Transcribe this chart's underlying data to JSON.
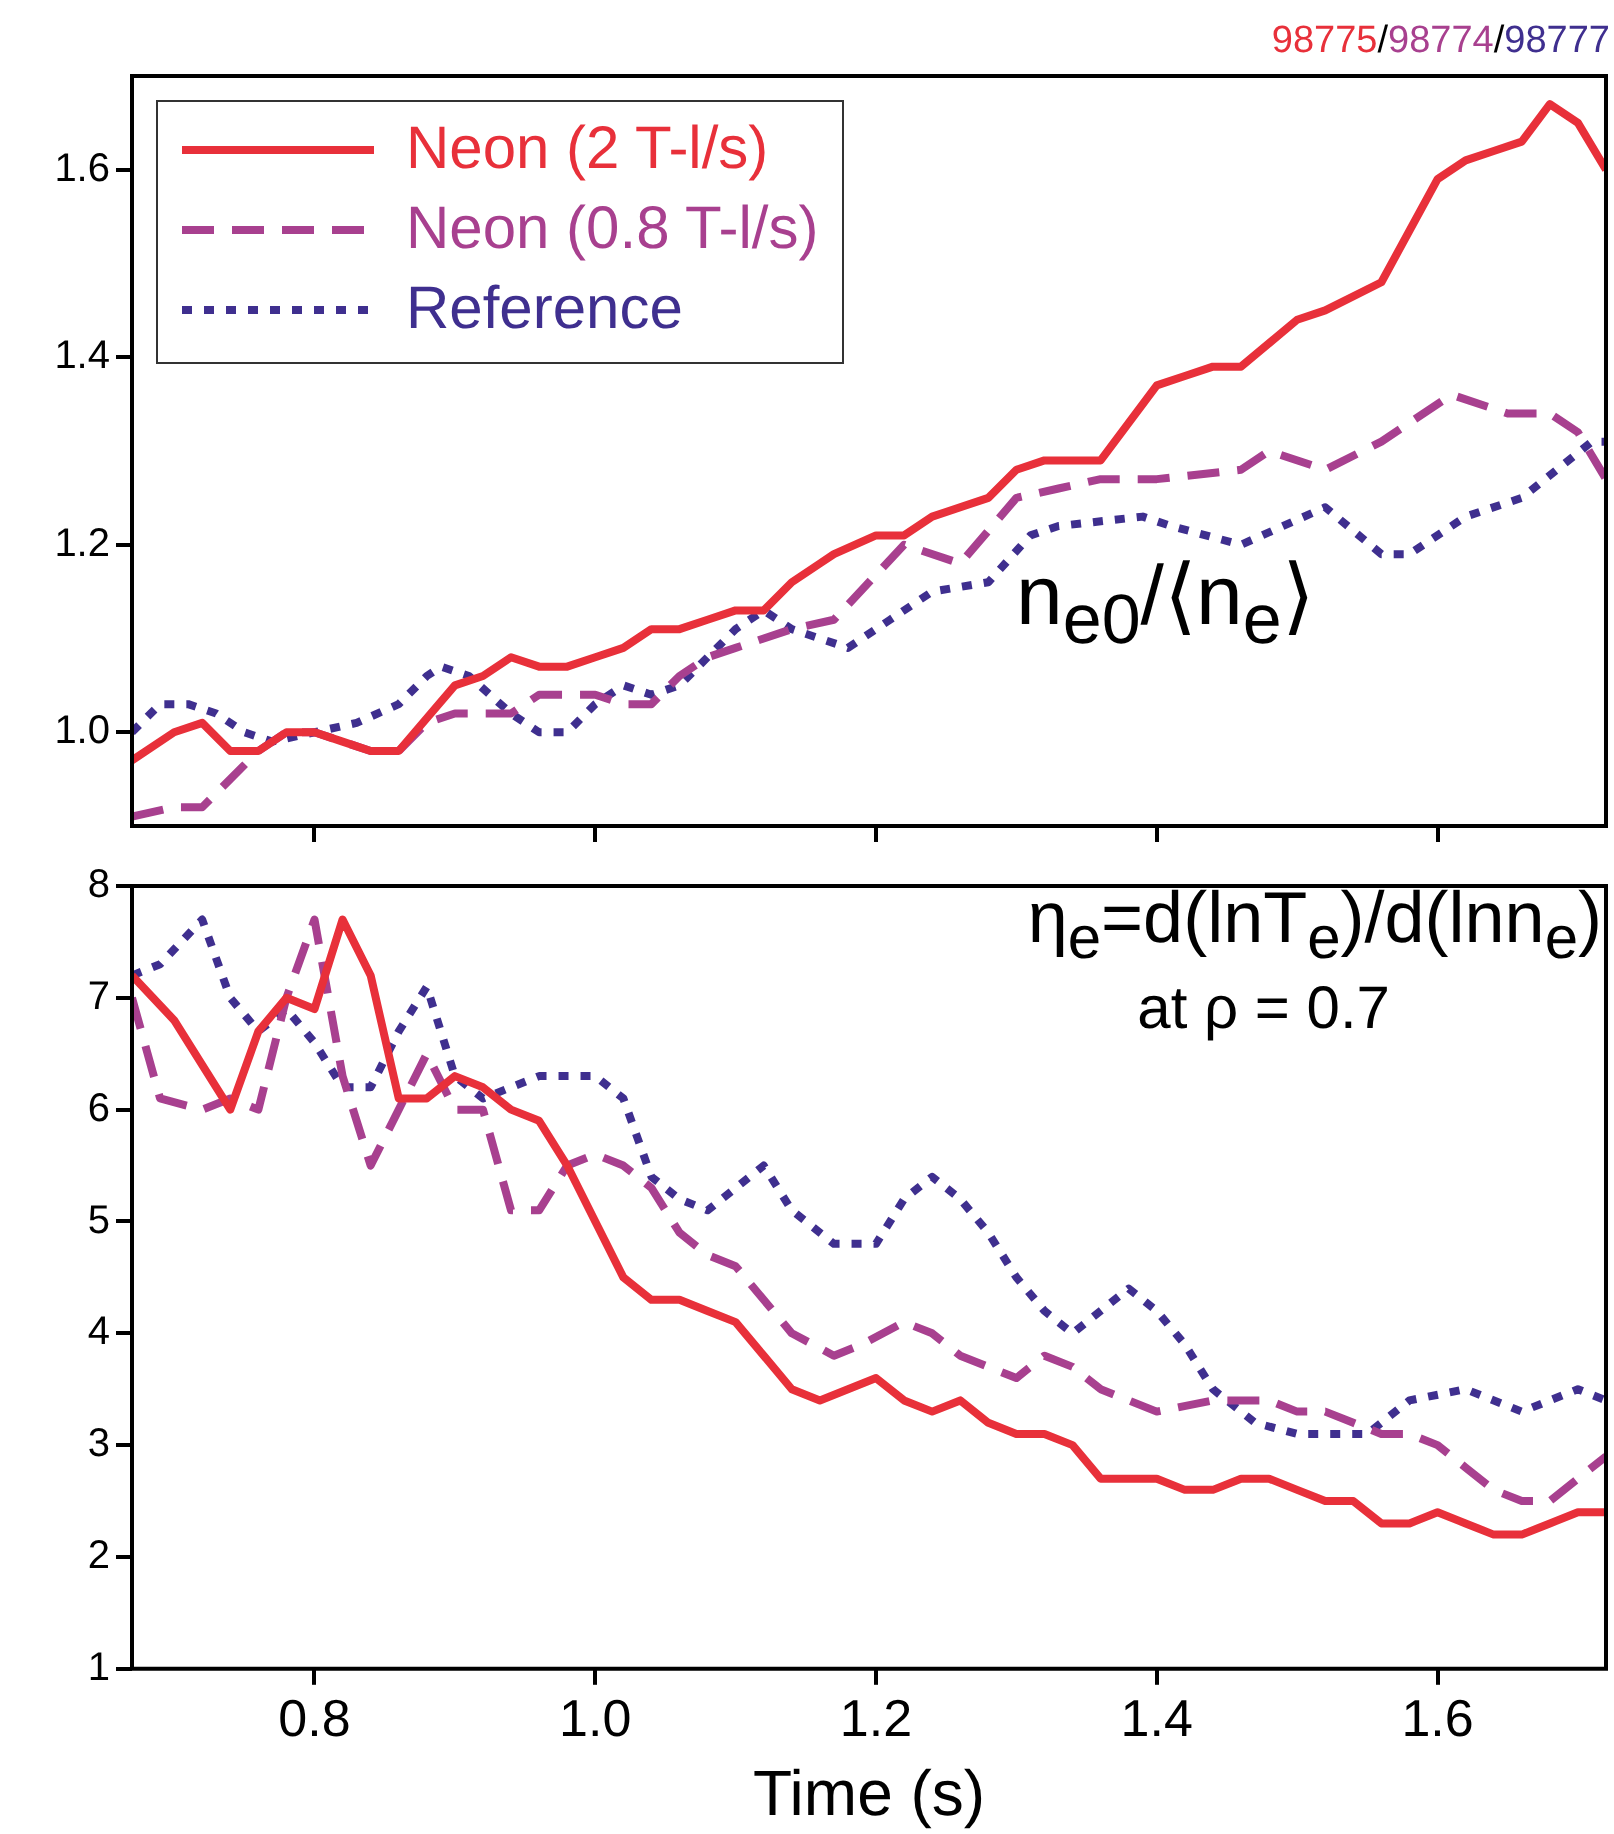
{
  "chart_data": [
    {
      "type": "line",
      "xlim": [
        0.67,
        1.72
      ],
      "xticks": [
        0.8,
        1,
        1.2,
        1.4,
        1.6
      ],
      "ylim": [
        0.9,
        1.7
      ],
      "yticks": [
        {
          "value": 1,
          "label": "1.0"
        },
        1.2,
        1.4,
        1.6
      ],
      "tick_labels": "y",
      "grid": false,
      "legend": "top left",
      "marker": "none",
      "annotations": [
        "98775/98774/98777",
        "n$_{e0}$/⟨n$_{e}$⟩"
      ],
      "series": [
        {
          "name": "Neon (2 T-l/s)",
          "color": "#e8303a",
          "line_style": "solid",
          "x": [
            0.67,
            0.7,
            0.72,
            0.74,
            0.76,
            0.78,
            0.8,
            0.82,
            0.84,
            0.86,
            0.9,
            0.92,
            0.94,
            0.96,
            0.98,
            1.0,
            1.02,
            1.04,
            1.06,
            1.08,
            1.1,
            1.12,
            1.14,
            1.16,
            1.17,
            1.2,
            1.22,
            1.24,
            1.28,
            1.3,
            1.32,
            1.34,
            1.36,
            1.4,
            1.42,
            1.44,
            1.46,
            1.5,
            1.52,
            1.56,
            1.6,
            1.62,
            1.64,
            1.66,
            1.68,
            1.7,
            1.72
          ],
          "values": [
            0.97,
            1.0,
            1.01,
            0.98,
            0.98,
            1.0,
            1.0,
            0.99,
            0.98,
            0.98,
            1.05,
            1.06,
            1.08,
            1.07,
            1.07,
            1.08,
            1.09,
            1.11,
            1.11,
            1.12,
            1.13,
            1.13,
            1.16,
            1.18,
            1.19,
            1.21,
            1.21,
            1.23,
            1.25,
            1.28,
            1.29,
            1.29,
            1.29,
            1.37,
            1.38,
            1.39,
            1.39,
            1.44,
            1.45,
            1.48,
            1.59,
            1.61,
            1.62,
            1.63,
            1.67,
            1.65,
            1.6
          ]
        },
        {
          "name": "Neon (0.8 T-l/s)",
          "color": "#a8408f",
          "line_style": "dashed",
          "x": [
            0.67,
            0.7,
            0.72,
            0.74,
            0.76,
            0.78,
            0.8,
            0.82,
            0.84,
            0.86,
            0.88,
            0.9,
            0.94,
            0.96,
            0.98,
            1.0,
            1.02,
            1.04,
            1.06,
            1.08,
            1.1,
            1.12,
            1.14,
            1.17,
            1.22,
            1.26,
            1.3,
            1.33,
            1.36,
            1.4,
            1.46,
            1.48,
            1.52,
            1.56,
            1.61,
            1.65,
            1.68,
            1.7,
            1.72
          ],
          "values": [
            0.91,
            0.92,
            0.92,
            0.95,
            0.98,
            1.0,
            1.0,
            0.99,
            0.98,
            0.98,
            1.01,
            1.02,
            1.02,
            1.04,
            1.04,
            1.04,
            1.03,
            1.03,
            1.06,
            1.08,
            1.09,
            1.1,
            1.11,
            1.12,
            1.2,
            1.18,
            1.25,
            1.26,
            1.27,
            1.27,
            1.28,
            1.3,
            1.28,
            1.31,
            1.36,
            1.34,
            1.34,
            1.32,
            1.27
          ]
        },
        {
          "name": "Reference",
          "color": "#3f2f8f",
          "line_style": "dotted",
          "x": [
            0.67,
            0.69,
            0.71,
            0.73,
            0.75,
            0.77,
            0.8,
            0.83,
            0.86,
            0.88,
            0.89,
            0.91,
            0.94,
            0.96,
            0.98,
            1.0,
            1.02,
            1.04,
            1.06,
            1.08,
            1.1,
            1.12,
            1.14,
            1.18,
            1.21,
            1.24,
            1.28,
            1.31,
            1.33,
            1.39,
            1.41,
            1.46,
            1.52,
            1.56,
            1.58,
            1.62,
            1.66,
            1.71,
            1.72
          ],
          "values": [
            1.0,
            1.03,
            1.03,
            1.02,
            1.0,
            0.99,
            1.0,
            1.01,
            1.03,
            1.06,
            1.07,
            1.06,
            1.02,
            1.0,
            1.0,
            1.03,
            1.05,
            1.04,
            1.05,
            1.08,
            1.11,
            1.13,
            1.11,
            1.09,
            1.12,
            1.15,
            1.16,
            1.21,
            1.22,
            1.23,
            1.22,
            1.2,
            1.24,
            1.19,
            1.19,
            1.23,
            1.25,
            1.31,
            1.31
          ]
        }
      ]
    },
    {
      "type": "line",
      "xlabel": "Time (s)",
      "xlim": [
        0.67,
        1.72
      ],
      "xticks": [
        0.8,
        {
          "value": 1,
          "label": "1.0"
        },
        1.2,
        1.4,
        1.6
      ],
      "ylim": [
        1,
        8
      ],
      "yticks": [
        1,
        2,
        3,
        4,
        5,
        6,
        7,
        8
      ],
      "grid": false,
      "marker": "none",
      "annotations": [
        "η$_{e}$=d(lnT$_{e}$)/d(lnn$_{e}$)",
        "at ρ = 0.7"
      ],
      "series": [
        {
          "color": "#e8303a",
          "line_style": "solid",
          "x": [
            0.67,
            0.7,
            0.72,
            0.74,
            0.76,
            0.78,
            0.8,
            0.82,
            0.84,
            0.86,
            0.88,
            0.9,
            0.92,
            0.94,
            0.96,
            0.98,
            1.0,
            1.02,
            1.04,
            1.06,
            1.08,
            1.1,
            1.12,
            1.14,
            1.16,
            1.18,
            1.2,
            1.22,
            1.24,
            1.26,
            1.28,
            1.3,
            1.32,
            1.34,
            1.36,
            1.38,
            1.4,
            1.42,
            1.44,
            1.46,
            1.48,
            1.5,
            1.52,
            1.54,
            1.56,
            1.58,
            1.6,
            1.62,
            1.64,
            1.66,
            1.68,
            1.7,
            1.72
          ],
          "values": [
            7.2,
            6.8,
            6.4,
            6.0,
            6.7,
            7.0,
            6.9,
            7.7,
            7.2,
            6.1,
            6.1,
            6.3,
            6.2,
            6.0,
            5.9,
            5.5,
            5.0,
            4.5,
            4.3,
            4.3,
            4.2,
            4.1,
            3.8,
            3.5,
            3.4,
            3.5,
            3.6,
            3.4,
            3.3,
            3.4,
            3.2,
            3.1,
            3.1,
            3.0,
            2.7,
            2.7,
            2.7,
            2.6,
            2.6,
            2.7,
            2.7,
            2.6,
            2.5,
            2.5,
            2.3,
            2.3,
            2.4,
            2.3,
            2.2,
            2.2,
            2.3,
            2.4,
            2.4
          ]
        },
        {
          "color": "#a8408f",
          "line_style": "dashed",
          "x": [
            0.67,
            0.69,
            0.72,
            0.74,
            0.76,
            0.78,
            0.8,
            0.82,
            0.84,
            0.86,
            0.88,
            0.9,
            0.92,
            0.94,
            0.96,
            0.98,
            1.0,
            1.02,
            1.04,
            1.06,
            1.08,
            1.1,
            1.12,
            1.14,
            1.17,
            1.19,
            1.22,
            1.24,
            1.26,
            1.28,
            1.3,
            1.32,
            1.34,
            1.36,
            1.38,
            1.4,
            1.44,
            1.46,
            1.48,
            1.5,
            1.52,
            1.54,
            1.56,
            1.58,
            1.6,
            1.62,
            1.64,
            1.66,
            1.68,
            1.7,
            1.72
          ],
          "values": [
            7.0,
            6.1,
            6.0,
            6.1,
            6.0,
            7.0,
            7.7,
            6.3,
            5.5,
            6.0,
            6.5,
            6.0,
            6.0,
            5.1,
            5.1,
            5.5,
            5.6,
            5.5,
            5.3,
            4.9,
            4.7,
            4.6,
            4.3,
            4.0,
            3.8,
            3.9,
            4.1,
            4.0,
            3.8,
            3.7,
            3.6,
            3.8,
            3.7,
            3.5,
            3.4,
            3.3,
            3.4,
            3.4,
            3.4,
            3.3,
            3.3,
            3.2,
            3.1,
            3.1,
            3.0,
            2.8,
            2.6,
            2.5,
            2.5,
            2.7,
            2.9
          ]
        },
        {
          "color": "#3f2f8f",
          "line_style": "dotted",
          "x": [
            0.67,
            0.69,
            0.72,
            0.74,
            0.76,
            0.78,
            0.8,
            0.82,
            0.84,
            0.86,
            0.88,
            0.9,
            0.92,
            0.94,
            0.96,
            0.98,
            1.0,
            1.02,
            1.04,
            1.06,
            1.08,
            1.1,
            1.12,
            1.14,
            1.17,
            1.2,
            1.22,
            1.24,
            1.26,
            1.28,
            1.3,
            1.32,
            1.34,
            1.36,
            1.38,
            1.4,
            1.42,
            1.44,
            1.47,
            1.5,
            1.53,
            1.55,
            1.58,
            1.62,
            1.66,
            1.68,
            1.7,
            1.72
          ],
          "values": [
            7.2,
            7.3,
            7.7,
            7.0,
            6.7,
            6.9,
            6.6,
            6.2,
            6.2,
            6.7,
            7.1,
            6.3,
            6.1,
            6.2,
            6.3,
            6.3,
            6.3,
            6.1,
            5.4,
            5.2,
            5.1,
            5.3,
            5.5,
            5.1,
            4.8,
            4.8,
            5.2,
            5.4,
            5.2,
            4.9,
            4.5,
            4.2,
            4.0,
            4.2,
            4.4,
            4.2,
            3.9,
            3.5,
            3.2,
            3.1,
            3.1,
            3.1,
            3.4,
            3.5,
            3.3,
            3.4,
            3.5,
            3.4
          ]
        }
      ]
    }
  ]
}
